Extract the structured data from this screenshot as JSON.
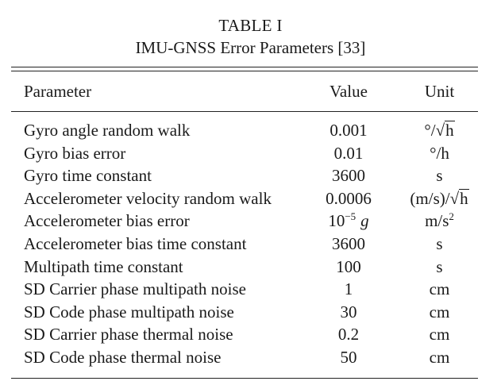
{
  "table": {
    "label": "TABLE I",
    "title": "IMU-GNSS Error Parameters [33]",
    "headers": {
      "parameter": "Parameter",
      "value": "Value",
      "unit": "Unit"
    },
    "rows": [
      {
        "parameter": "Gyro angle random walk",
        "value": "0.001",
        "unit_pre": "°/√",
        "unit_rad": "h",
        "unit": "°/√h"
      },
      {
        "parameter": "Gyro bias error",
        "value": "0.01",
        "unit": "°/h"
      },
      {
        "parameter": "Gyro time constant",
        "value": "3600",
        "unit": "s"
      },
      {
        "parameter": "Accelerometer velocity random walk",
        "value": "0.0006",
        "unit_pre": "(m/s)/√",
        "unit_rad": "h",
        "unit": "(m/s)/√h"
      },
      {
        "parameter": "Accelerometer bias error",
        "value_base": "10",
        "value_exp": "−5",
        "value_sym": "g",
        "value": "10−5 g",
        "unit_base": "m/s",
        "unit_exp": "2",
        "unit": "m/s2"
      },
      {
        "parameter": "Accelerometer bias time constant",
        "value": "3600",
        "unit": "s"
      },
      {
        "parameter": "Multipath time constant",
        "value": "100",
        "unit": "s"
      },
      {
        "parameter": "SD Carrier phase multipath noise",
        "value": "1",
        "unit": "cm"
      },
      {
        "parameter": "SD Code phase multipath noise",
        "value": "30",
        "unit": "cm"
      },
      {
        "parameter": "SD Carrier phase thermal noise",
        "value": "0.2",
        "unit": "cm"
      },
      {
        "parameter": "SD Code phase thermal noise",
        "value": "50",
        "unit": "cm"
      }
    ]
  }
}
